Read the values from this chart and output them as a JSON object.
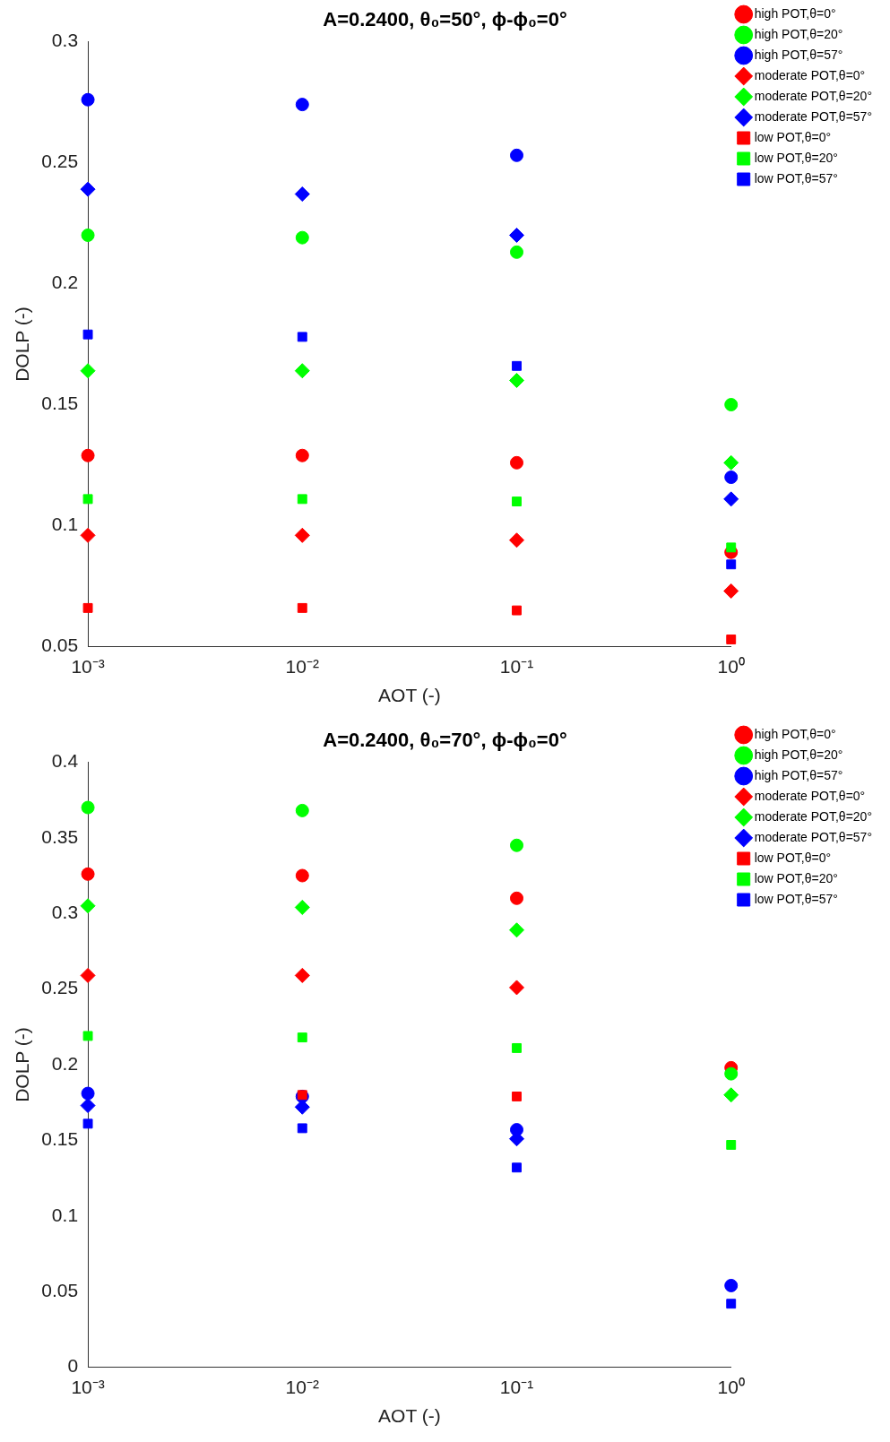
{
  "chart_data": [
    {
      "type": "scatter",
      "title": "A=0.2400, θ₀=50°, ϕ-ϕ₀=0°",
      "xlabel": "AOT (-)",
      "ylabel": "DOLP (-)",
      "log": "x",
      "grid": false,
      "legend": "top right",
      "x": [
        0.001,
        0.01,
        0.1,
        1
      ],
      "xlim": [
        0.001,
        1
      ],
      "xticks": [
        {
          "value": 0.001,
          "label": "10⁻³"
        },
        {
          "value": 0.01,
          "label": "10⁻²"
        },
        {
          "value": 0.1,
          "label": "10⁻¹"
        },
        {
          "value": 1,
          "label": "10⁰"
        }
      ],
      "ylim": [
        0.05,
        0.3
      ],
      "yticks": [
        0.05,
        0.1,
        0.15,
        0.2,
        0.25,
        0.3
      ],
      "series": [
        {
          "name": "high POT,θ=0°",
          "color": "#ff0000",
          "marker": "circle",
          "values": [
            0.129,
            0.129,
            0.126,
            0.089
          ]
        },
        {
          "name": "high POT,θ=20°",
          "color": "#00ff00",
          "marker": "circle",
          "values": [
            0.22,
            0.219,
            0.213,
            0.15
          ]
        },
        {
          "name": "high POT,θ=57°",
          "color": "#0000ff",
          "marker": "circle",
          "values": [
            0.276,
            0.274,
            0.253,
            0.12
          ]
        },
        {
          "name": "moderate POT,θ=0°",
          "color": "#ff0000",
          "marker": "diamond",
          "values": [
            0.096,
            0.096,
            0.094,
            0.073
          ]
        },
        {
          "name": "moderate POT,θ=20°",
          "color": "#00ff00",
          "marker": "diamond",
          "values": [
            0.164,
            0.164,
            0.16,
            0.126
          ]
        },
        {
          "name": "moderate POT,θ=57°",
          "color": "#0000ff",
          "marker": "diamond",
          "values": [
            0.239,
            0.237,
            0.22,
            0.111
          ]
        },
        {
          "name": "low POT,θ=0°",
          "color": "#ff0000",
          "marker": "square",
          "values": [
            0.066,
            0.066,
            0.065,
            0.053
          ]
        },
        {
          "name": "low POT,θ=20°",
          "color": "#00ff00",
          "marker": "square",
          "values": [
            0.111,
            0.111,
            0.11,
            0.091
          ]
        },
        {
          "name": "low POT,θ=57°",
          "color": "#0000ff",
          "marker": "square",
          "values": [
            0.179,
            0.178,
            0.166,
            0.084
          ]
        }
      ]
    },
    {
      "type": "scatter",
      "title": "A=0.2400, θ₀=70°, ϕ-ϕ₀=0°",
      "xlabel": "AOT (-)",
      "ylabel": "DOLP (-)",
      "log": "x",
      "grid": false,
      "legend": "top right",
      "x": [
        0.001,
        0.01,
        0.1,
        1
      ],
      "xlim": [
        0.001,
        1
      ],
      "xticks": [
        {
          "value": 0.001,
          "label": "10⁻³"
        },
        {
          "value": 0.01,
          "label": "10⁻²"
        },
        {
          "value": 0.1,
          "label": "10⁻¹"
        },
        {
          "value": 1,
          "label": "10⁰"
        }
      ],
      "ylim": [
        0,
        0.4
      ],
      "yticks": [
        0,
        0.05,
        0.1,
        0.15,
        0.2,
        0.25,
        0.3,
        0.35,
        0.4
      ],
      "series": [
        {
          "name": "high POT,θ=0°",
          "color": "#ff0000",
          "marker": "circle",
          "values": [
            0.326,
            0.325,
            0.31,
            0.198
          ]
        },
        {
          "name": "high POT,θ=20°",
          "color": "#00ff00",
          "marker": "circle",
          "values": [
            0.37,
            0.368,
            0.345,
            0.194
          ]
        },
        {
          "name": "high POT,θ=57°",
          "color": "#0000ff",
          "marker": "circle",
          "values": [
            0.181,
            0.179,
            0.157,
            0.054
          ]
        },
        {
          "name": "moderate POT,θ=0°",
          "color": "#ff0000",
          "marker": "diamond",
          "values": [
            0.259,
            0.259,
            0.251,
            null
          ]
        },
        {
          "name": "moderate POT,θ=20°",
          "color": "#00ff00",
          "marker": "diamond",
          "values": [
            0.305,
            0.304,
            0.289,
            0.18
          ]
        },
        {
          "name": "moderate POT,θ=57°",
          "color": "#0000ff",
          "marker": "diamond",
          "values": [
            0.173,
            0.172,
            0.151,
            null
          ]
        },
        {
          "name": "low POT,θ=0°",
          "color": "#ff0000",
          "marker": "square",
          "values": [
            null,
            0.18,
            0.179,
            null
          ]
        },
        {
          "name": "low POT,θ=20°",
          "color": "#00ff00",
          "marker": "square",
          "values": [
            0.219,
            0.218,
            0.211,
            0.147
          ]
        },
        {
          "name": "low POT,θ=57°",
          "color": "#0000ff",
          "marker": "square",
          "values": [
            0.161,
            0.158,
            0.132,
            0.042
          ]
        }
      ]
    }
  ]
}
